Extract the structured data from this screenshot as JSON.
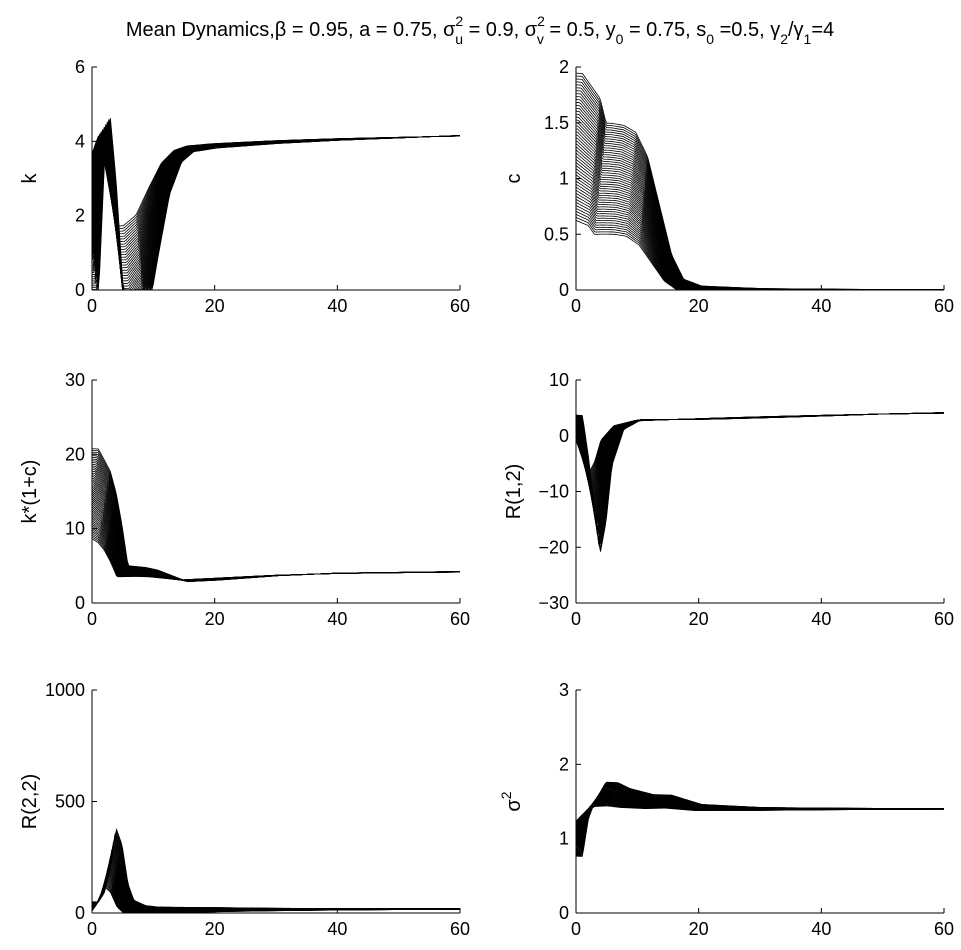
{
  "figure": {
    "title_parts": {
      "prefix": "Mean Dynamics,",
      "beta_sym": "β",
      "beta_eq": " = 0.95, a = 0.75, ",
      "sigma_sym": "σ",
      "two": "2",
      "u_sub": "u",
      "u_eq": " = 0.9, ",
      "v_sub": "v",
      "v_eq": " = 0.5, y",
      "zero": "0",
      "y0_eq": " = 0.75, s",
      "s0_eq": " =0.5, ",
      "gamma_sym": "γ",
      "g2_sub": "2",
      "slash": "/",
      "g1_sub": "1",
      "ratio_eq": "=4"
    }
  },
  "chart_data": [
    {
      "id": "k",
      "type": "line",
      "ylabel": "k",
      "ylabel_is_sigma2": false,
      "xlim": [
        0,
        60
      ],
      "ylim": [
        0,
        6
      ],
      "xticks": [
        "0",
        "20",
        "40",
        "60"
      ],
      "yticks": [
        "0",
        "2",
        "4",
        "6"
      ],
      "series_count": 50,
      "line_color": "#000000",
      "representative_series": {
        "x": [
          0,
          1,
          2,
          3,
          4,
          5,
          6,
          8,
          10,
          12,
          14,
          16,
          20,
          30,
          40,
          50,
          60
        ],
        "y": [
          1.0,
          3.5,
          4.4,
          3.2,
          1.5,
          0.0,
          0.0,
          0.5,
          1.8,
          3.0,
          3.6,
          3.8,
          3.88,
          3.98,
          4.05,
          4.1,
          4.15
        ]
      }
    },
    {
      "id": "c",
      "type": "line",
      "ylabel": "c",
      "ylabel_is_sigma2": false,
      "xlim": [
        0,
        60
      ],
      "ylim": [
        0,
        2
      ],
      "xticks": [
        "0",
        "20",
        "40",
        "60"
      ],
      "yticks": [
        "0",
        "0.5",
        "1",
        "1.5",
        "2"
      ],
      "series_count": 50,
      "line_color": "#000000",
      "representative_series": {
        "x": [
          0,
          1,
          3,
          4,
          5,
          7,
          9,
          11,
          13,
          15,
          17,
          20,
          30,
          60
        ],
        "y": [
          1.3,
          1.25,
          1.15,
          1.0,
          1.0,
          0.99,
          0.95,
          0.8,
          0.5,
          0.2,
          0.05,
          0.01,
          0.0,
          0.0
        ]
      }
    },
    {
      "id": "k_times_1_plus_c",
      "type": "line",
      "ylabel": "k*(1+c)",
      "ylabel_is_sigma2": false,
      "xlim": [
        0,
        60
      ],
      "ylim": [
        0,
        30
      ],
      "xticks": [
        "0",
        "20",
        "40",
        "60"
      ],
      "yticks": [
        "0",
        "10",
        "20",
        "30"
      ],
      "series_count": 50,
      "line_color": "#000000",
      "representative_series": {
        "x": [
          0,
          1,
          2,
          3,
          4,
          5,
          8,
          10,
          15,
          20,
          30,
          40,
          60
        ],
        "y": [
          15,
          14,
          13,
          11,
          8,
          4.3,
          4.2,
          4.0,
          3.0,
          3.2,
          3.7,
          4.0,
          4.2
        ]
      }
    },
    {
      "id": "R_1_2",
      "type": "line",
      "ylabel": "R(1,2)",
      "ylabel_is_sigma2": false,
      "xlim": [
        0,
        60
      ],
      "ylim": [
        -30,
        10
      ],
      "xticks": [
        "0",
        "20",
        "40",
        "60"
      ],
      "yticks": [
        "−30",
        "−20",
        "−10",
        "0",
        "10"
      ],
      "series_count": 50,
      "line_color": "#000000",
      "representative_series": {
        "x": [
          0,
          1,
          2,
          3,
          4,
          5,
          7,
          10,
          20,
          30,
          40,
          50,
          60
        ],
        "y": [
          3.0,
          -2,
          -8,
          -14,
          -10,
          -3,
          1.5,
          2.8,
          3.0,
          3.3,
          3.6,
          3.9,
          4.1
        ]
      }
    },
    {
      "id": "R_2_2",
      "type": "line",
      "ylabel": "R(2,2)",
      "ylabel_is_sigma2": false,
      "xlim": [
        0,
        60
      ],
      "ylim": [
        0,
        1000
      ],
      "xticks": [
        "0",
        "20",
        "40",
        "60"
      ],
      "yticks": [
        "0",
        "500",
        "1000"
      ],
      "series_count": 50,
      "line_color": "#000000",
      "representative_series": {
        "x": [
          0,
          1,
          2,
          3,
          4,
          5,
          6,
          8,
          10,
          20,
          60
        ],
        "y": [
          20,
          50,
          120,
          250,
          200,
          80,
          30,
          15,
          12,
          15,
          18
        ]
      }
    },
    {
      "id": "sigma2",
      "type": "line",
      "ylabel": "σ2",
      "ylabel_is_sigma2": true,
      "ylabel_parts": {
        "base": "σ",
        "sup": "2"
      },
      "xlim": [
        0,
        60
      ],
      "ylim": [
        0,
        3
      ],
      "xticks": [
        "0",
        "20",
        "40",
        "60"
      ],
      "yticks": [
        "0",
        "1",
        "2",
        "3"
      ],
      "series_count": 50,
      "line_color": "#000000",
      "representative_series": {
        "x": [
          0,
          1,
          2,
          3,
          4,
          6,
          8,
          12,
          15,
          20,
          30,
          40,
          60
        ],
        "y": [
          0.9,
          1.25,
          1.4,
          1.5,
          1.6,
          1.6,
          1.55,
          1.5,
          1.5,
          1.42,
          1.4,
          1.4,
          1.4
        ]
      }
    }
  ]
}
